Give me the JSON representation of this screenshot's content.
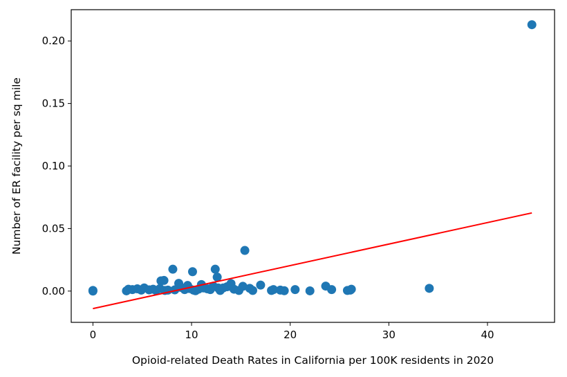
{
  "chart_data": {
    "type": "scatter",
    "title": "",
    "xlabel": "Opioid-related Death Rates in California per 100K residents in 2020",
    "ylabel": "Number of ER facility per sq mile",
    "xlim": [
      -2.2,
      46.8
    ],
    "ylim": [
      -0.025,
      0.225
    ],
    "xticks": [
      0,
      10,
      20,
      30,
      40
    ],
    "yticks": [
      0.0,
      0.05,
      0.1,
      0.15,
      0.2
    ],
    "xtick_labels": [
      "0",
      "10",
      "20",
      "30",
      "40"
    ],
    "ytick_labels": [
      "0.00",
      "0.05",
      "0.10",
      "0.15",
      "0.20"
    ],
    "grid": false,
    "legend": "none",
    "point_color": "#1f77b4",
    "series": [
      {
        "x": [
          0.0,
          0.0,
          3.4,
          3.6,
          4.0,
          4.5,
          4.9,
          5.2,
          5.7,
          6.1,
          6.4,
          6.8,
          6.9,
          7.2,
          7.3,
          7.6,
          8.1,
          8.3,
          8.7,
          8.9,
          9.3,
          9.6,
          9.8,
          10.1,
          10.2,
          10.4,
          10.7,
          11.0,
          11.2,
          11.6,
          11.9,
          12.2,
          12.4,
          12.6,
          12.7,
          12.9,
          13.2,
          13.6,
          14.0,
          14.3,
          14.8,
          15.2,
          15.4,
          15.9,
          16.2,
          17.0,
          18.1,
          18.3,
          19.0,
          19.4,
          20.5,
          22.0,
          23.6,
          24.2,
          25.8,
          26.1,
          26.2,
          34.1,
          44.5
        ],
        "y": [
          0.0005,
          0.0,
          0.0002,
          0.0015,
          0.0012,
          0.0018,
          0.0008,
          0.0025,
          0.001,
          0.0015,
          0.0005,
          0.002,
          0.0082,
          0.0085,
          0.0005,
          0.0008,
          0.0175,
          0.001,
          0.0062,
          0.003,
          0.0012,
          0.0045,
          0.002,
          0.0155,
          0.0008,
          0.0003,
          0.0015,
          0.0052,
          0.0025,
          0.0018,
          0.0012,
          0.004,
          0.0175,
          0.0112,
          0.0025,
          0.0005,
          0.0025,
          0.0035,
          0.006,
          0.0015,
          0.0005,
          0.0038,
          0.0325,
          0.0022,
          0.0005,
          0.0048,
          0.0005,
          0.0012,
          0.0008,
          0.0003,
          0.0012,
          0.0002,
          0.004,
          0.0012,
          0.0005,
          0.0008,
          0.0015,
          0.0022,
          0.213
        ]
      }
    ],
    "trendline": {
      "color": "#ff0000",
      "x": [
        0.0,
        44.5
      ],
      "y": [
        -0.014,
        0.0625
      ]
    }
  }
}
